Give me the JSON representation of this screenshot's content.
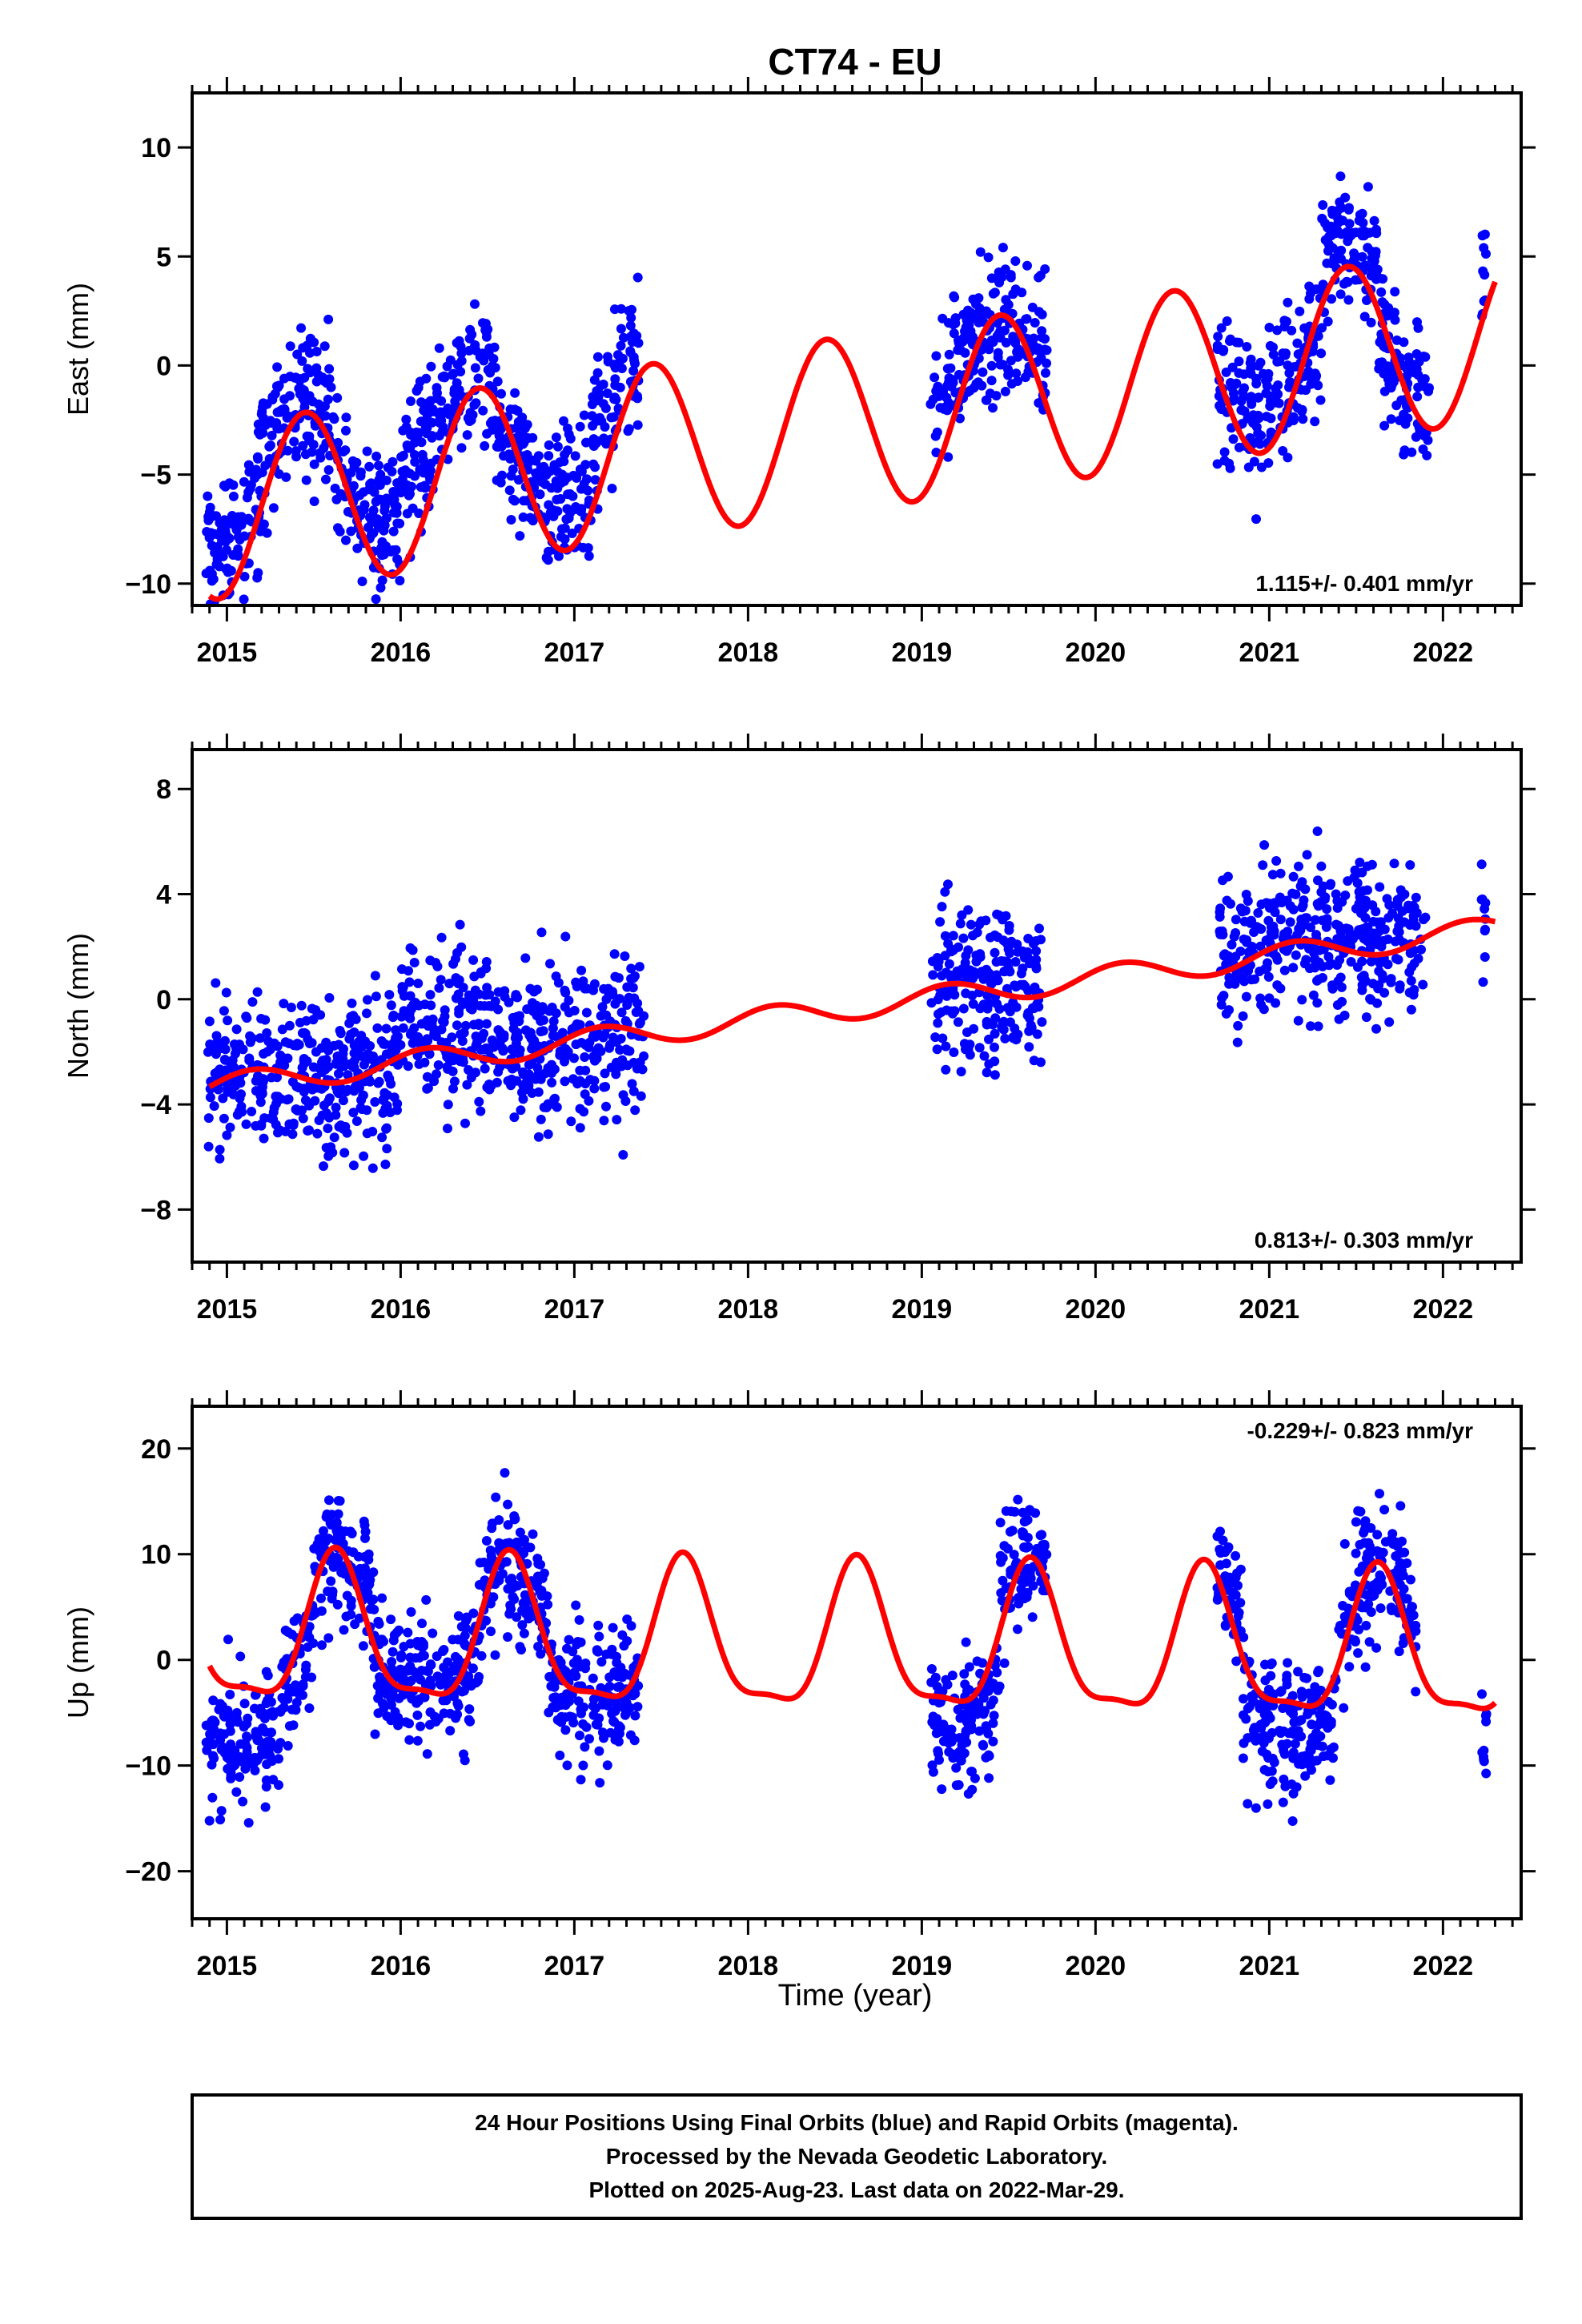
{
  "chart_data": [
    {
      "type": "scatter",
      "title": "CT74 - EU",
      "ylabel": "East (mm)",
      "xlabel": "",
      "xlim": [
        2014.8,
        2022.45
      ],
      "ylim": [
        -11,
        12.5
      ],
      "xticks": [
        2015,
        2016,
        2017,
        2018,
        2019,
        2020,
        2021,
        2022
      ],
      "yticks": [
        -10,
        -5,
        0,
        5,
        10
      ],
      "rate_label": "1.115+/- 0.401 mm/yr",
      "rate_position": "bottom-right",
      "colors": {
        "points": "#0000ff",
        "model": "#ff0000"
      },
      "model": {
        "offset": -2.75,
        "rate": 1.115,
        "t0": 2018.5,
        "annual": [
          {
            "t_start": 2014.9,
            "t_end": 2022.3,
            "amplitude": 4.0,
            "peak_phase": 0.45
          }
        ]
      },
      "data_spans": [
        [
          2014.88,
          2015.2,
          -6.0
        ],
        [
          2015.2,
          2015.62,
          -1.0
        ],
        [
          2015.62,
          2016.0,
          -5.0
        ],
        [
          2016.0,
          2016.55,
          0.0
        ],
        [
          2016.55,
          2017.1,
          -4.0
        ],
        [
          2017.1,
          2017.37,
          1.0
        ],
        [
          2019.05,
          2019.62,
          1.0
        ],
        [
          2019.62,
          2019.72,
          2.0
        ],
        [
          2020.7,
          2021.3,
          0.0
        ],
        [
          2021.3,
          2021.62,
          7.0
        ],
        [
          2021.62,
          2021.92,
          -0.5
        ],
        [
          2022.22,
          2022.25,
          5.5
        ]
      ],
      "scatter_sigma": 2.2,
      "point_count_per_year": 330
    },
    {
      "type": "scatter",
      "title": "",
      "ylabel": "North (mm)",
      "xlabel": "",
      "xlim": [
        2014.8,
        2022.45
      ],
      "ylim": [
        -10,
        9.5
      ],
      "xticks": [
        2015,
        2016,
        2017,
        2018,
        2019,
        2020,
        2021,
        2022
      ],
      "yticks": [
        -8,
        -4,
        0,
        4,
        8
      ],
      "rate_label": "0.813+/- 0.303 mm/yr",
      "rate_position": "bottom-right",
      "colors": {
        "points": "#0000ff",
        "model": "#ff0000"
      },
      "model": {
        "offset": -0.4,
        "rate": 0.813,
        "t0": 2018.5,
        "annual": [
          {
            "t_start": 2014.9,
            "t_end": 2022.3,
            "amplitude": 0.45,
            "peak_phase": 0.15
          }
        ]
      },
      "data_spans": [
        [
          2014.88,
          2015.15,
          -2.5
        ],
        [
          2015.15,
          2016.0,
          -3.0
        ],
        [
          2016.0,
          2016.6,
          0.0
        ],
        [
          2016.6,
          2017.4,
          -1.5
        ],
        [
          2019.05,
          2019.7,
          0.5
        ],
        [
          2020.7,
          2021.9,
          2.8
        ],
        [
          2022.22,
          2022.25,
          3.5
        ]
      ],
      "scatter_sigma": 2.0,
      "point_count_per_year": 330
    },
    {
      "type": "scatter",
      "title": "",
      "ylabel": "Up (mm)",
      "xlabel": "Time (year)",
      "xlim": [
        2014.8,
        2022.45
      ],
      "ylim": [
        -24.5,
        24
      ],
      "xticks": [
        2015,
        2016,
        2017,
        2018,
        2019,
        2020,
        2021,
        2022
      ],
      "yticks": [
        -20,
        -10,
        0,
        10,
        20
      ],
      "rate_label": "-0.229+/- 0.823 mm/yr",
      "rate_position": "top-right",
      "colors": {
        "points": "#0000ff",
        "model": "#ff0000"
      },
      "model": {
        "offset": 1.3,
        "rate": -0.229,
        "t0": 2018.5,
        "annual": [
          {
            "t_start": 2014.9,
            "t_end": 2022.3,
            "amplitude": 6.7,
            "peak_phase": 0.63
          }
        ],
        "semiannual_amplitude": 2.0
      },
      "data_spans": [
        [
          2014.88,
          2015.3,
          -13.0
        ],
        [
          2015.3,
          2015.5,
          -3.0
        ],
        [
          2015.5,
          2015.85,
          9.0
        ],
        [
          2015.85,
          2016.45,
          -1.0
        ],
        [
          2016.45,
          2016.85,
          7.0
        ],
        [
          2016.85,
          2017.37,
          -4.0
        ],
        [
          2019.05,
          2019.45,
          -8.0
        ],
        [
          2019.45,
          2019.72,
          11.0
        ],
        [
          2020.7,
          2020.85,
          9.0
        ],
        [
          2020.85,
          2021.4,
          -9.0
        ],
        [
          2021.4,
          2021.85,
          7.0
        ],
        [
          2022.22,
          2022.25,
          -10.0
        ]
      ],
      "scatter_sigma": 4.2,
      "point_count_per_year": 330
    }
  ],
  "footer": {
    "line1": "24 Hour Positions Using Final Orbits (blue) and Rapid Orbits (magenta).",
    "line2": "Processed by the Nevada Geodetic Laboratory.",
    "line3": "Plotted on 2025-Aug-23. Last data on 2022-Mar-29."
  }
}
